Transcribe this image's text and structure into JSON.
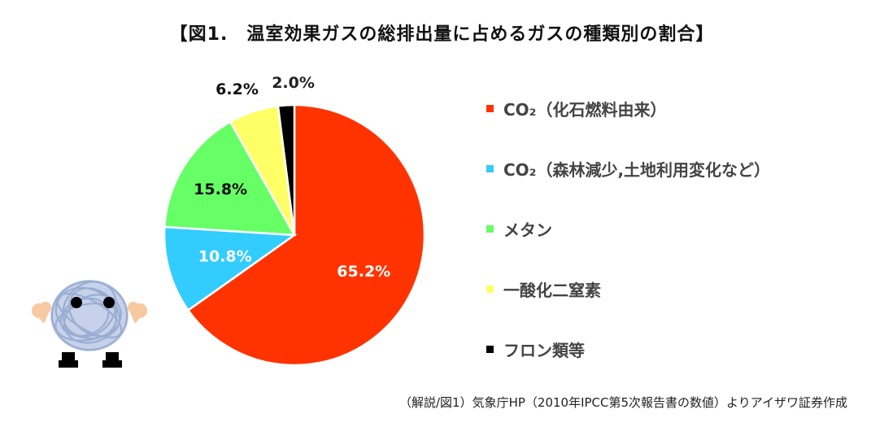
{
  "title": "【図1.　温室効果ガスの総排出量に占めるガスの種類別の割合】",
  "source_note": "（解説/図1）気象庁HP（2010年IPCC第5次報告書の数値）よりアイザワ証券作成",
  "chart_data": {
    "type": "pie",
    "title": "【図1.　温室効果ガスの総排出量に占めるガスの種類別の割合】",
    "start": "12 o'clock",
    "direction": "clockwise",
    "legend_position": "right",
    "slices": [
      {
        "label": "CO₂（化石燃料由来）",
        "value": 65.2,
        "display": "65.2%",
        "color": "#FF3300",
        "label_color": "#ffffff"
      },
      {
        "label": "CO₂（森林減少,土地利用変化など）",
        "value": 10.8,
        "display": "10.8%",
        "color": "#33CCFF",
        "label_color": "#ffffff"
      },
      {
        "label": "メタン",
        "value": 15.8,
        "display": "15.8%",
        "color": "#66FF66",
        "label_color": "#111111"
      },
      {
        "label": "一酸化二窒素",
        "value": 6.2,
        "display": "6.2%",
        "color": "#FFFF66",
        "label_color": "#111111"
      },
      {
        "label": "フロン類等",
        "value": 2.0,
        "display": "2.0%",
        "color": "#000000",
        "label_color": "#222222"
      }
    ]
  }
}
